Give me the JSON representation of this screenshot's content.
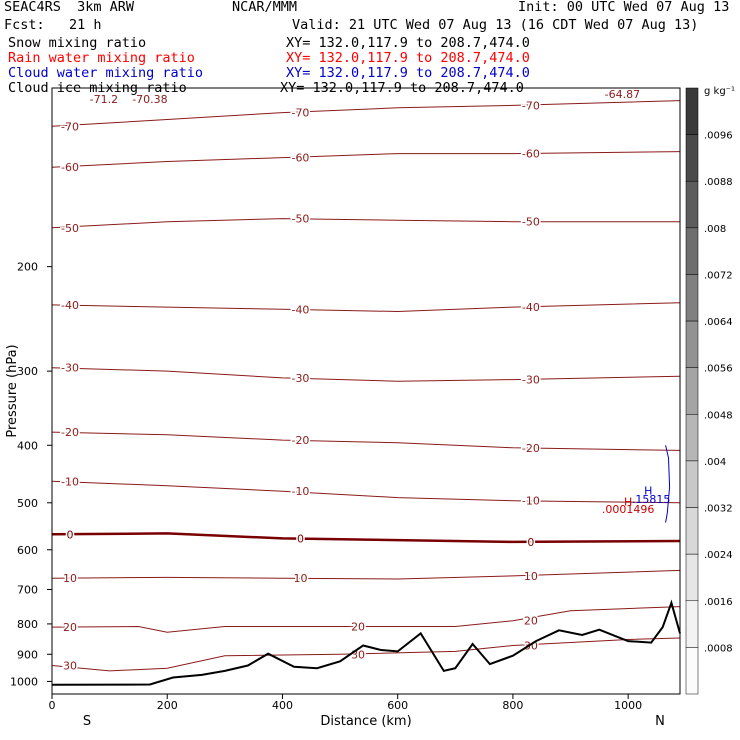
{
  "header": {
    "model": "SEAC4RS  3km ARW",
    "org": "NCAR/MMM",
    "init": "Init: 00 UTC Wed 07 Aug 13",
    "fcst": "Fcst:   21 h",
    "valid": "Valid: 21 UTC Wed 07 Aug 13 (16 CDT Wed 07 Aug 13)",
    "fields": [
      {
        "label": "Snow mixing ratio",
        "xy": "XY= 132.0,117.9 to 208.7,474.0",
        "color": "#000000"
      },
      {
        "label": "Rain water mixing ratio",
        "xy": "XY= 132.0,117.9 to 208.7,474.0",
        "color": "#ff0000"
      },
      {
        "label": "Cloud water mixing ratio",
        "xy": "XY= 132.0,117.9 to 208.7,474.0",
        "color": "#0000cc"
      },
      {
        "label": "Cloud ice mixing ratio",
        "xy": "XY= 132.0,117.9 to 208.7,474.0",
        "color": "#000000"
      }
    ]
  },
  "colorbar": {
    "unit": "g kg⁻¹",
    "ticks": [
      ".0096",
      ".0088",
      ".008",
      ".0072",
      ".0064",
      ".0056",
      ".0048",
      ".004",
      ".0032",
      ".0024",
      ".0016",
      ".0008"
    ],
    "colors": [
      "#3a3a3a",
      "#4a4a4a",
      "#5c5c5c",
      "#6e6e6e",
      "#808080",
      "#929292",
      "#a4a4a4",
      "#b6b6b6",
      "#c8c8c8",
      "#d8d8d8",
      "#e6e6e6",
      "#f2f2f2",
      "#fbfbfb"
    ]
  },
  "chart_data": {
    "type": "contour-cross-section",
    "xlabel": "Distance (km)",
    "ylabel": "Pressure (hPa)",
    "xlim": [
      0,
      1090
    ],
    "ylim": [
      1050,
      100
    ],
    "y_log": true,
    "xticks": [
      "0",
      "200",
      "400",
      "600",
      "800",
      "1000"
    ],
    "yticks": [
      "200",
      "300",
      "400",
      "500",
      "600",
      "700",
      "800",
      "900",
      "1000"
    ],
    "x_end_labels": {
      "left": "S",
      "right": "N"
    },
    "temperature_contours": [
      {
        "value": -70,
        "color": "#8b1a1a",
        "pts": [
          [
            0,
            116
          ],
          [
            200,
            113
          ],
          [
            400,
            110
          ],
          [
            600,
            108
          ],
          [
            800,
            107
          ],
          [
            1090,
            105
          ]
        ]
      },
      {
        "value": -60,
        "color": "#8b1a1a",
        "pts": [
          [
            0,
            136
          ],
          [
            200,
            133
          ],
          [
            400,
            131
          ],
          [
            600,
            129
          ],
          [
            800,
            129
          ],
          [
            1090,
            128
          ]
        ]
      },
      {
        "value": -50,
        "color": "#8b1a1a",
        "pts": [
          [
            0,
            172
          ],
          [
            200,
            168
          ],
          [
            400,
            166
          ],
          [
            600,
            167
          ],
          [
            800,
            168
          ],
          [
            1090,
            168
          ]
        ]
      },
      {
        "value": -40,
        "color": "#8b1a1a",
        "pts": [
          [
            0,
            232
          ],
          [
            200,
            234
          ],
          [
            400,
            236
          ],
          [
            600,
            238
          ],
          [
            800,
            234
          ],
          [
            1090,
            230
          ]
        ]
      },
      {
        "value": -30,
        "color": "#8b1a1a",
        "pts": [
          [
            0,
            296
          ],
          [
            200,
            300
          ],
          [
            400,
            308
          ],
          [
            600,
            312
          ],
          [
            800,
            310
          ],
          [
            1090,
            306
          ]
        ]
      },
      {
        "value": -20,
        "color": "#8b1a1a",
        "pts": [
          [
            0,
            380
          ],
          [
            200,
            384
          ],
          [
            400,
            392
          ],
          [
            600,
            396
          ],
          [
            800,
            404
          ],
          [
            1090,
            408
          ]
        ]
      },
      {
        "value": -10,
        "color": "#8b1a1a",
        "pts": [
          [
            0,
            460
          ],
          [
            200,
            468
          ],
          [
            400,
            478
          ],
          [
            600,
            490
          ],
          [
            800,
            496
          ],
          [
            1090,
            500
          ]
        ]
      },
      {
        "value": 0,
        "color": "#7a0000",
        "bold": true,
        "pts": [
          [
            0,
            565
          ],
          [
            200,
            563
          ],
          [
            400,
            574
          ],
          [
            600,
            578
          ],
          [
            800,
            582
          ],
          [
            1090,
            580
          ]
        ]
      },
      {
        "value": 10,
        "color": "#8b1a1a",
        "pts": [
          [
            0,
            670
          ],
          [
            200,
            668
          ],
          [
            400,
            670
          ],
          [
            600,
            672
          ],
          [
            800,
            664
          ],
          [
            1090,
            650
          ]
        ]
      },
      {
        "value": 20,
        "color": "#8b1a1a",
        "pts": [
          [
            0,
            810
          ],
          [
            150,
            808
          ],
          [
            200,
            826
          ],
          [
            300,
            808
          ],
          [
            500,
            808
          ],
          [
            700,
            808
          ],
          [
            800,
            790
          ],
          [
            900,
            760
          ],
          [
            1090,
            748
          ]
        ]
      },
      {
        "value": 30,
        "color": "#8b1a1a",
        "pts": [
          [
            0,
            940
          ],
          [
            100,
            960
          ],
          [
            200,
            950
          ],
          [
            300,
            905
          ],
          [
            500,
            900
          ],
          [
            700,
            890
          ],
          [
            800,
            870
          ],
          [
            1000,
            850
          ],
          [
            1090,
            845
          ]
        ]
      }
    ],
    "terrain_surface_hpa": [
      [
        0,
        1013
      ],
      [
        170,
        1012
      ],
      [
        210,
        985
      ],
      [
        260,
        975
      ],
      [
        300,
        960
      ],
      [
        340,
        940
      ],
      [
        375,
        898
      ],
      [
        420,
        945
      ],
      [
        460,
        950
      ],
      [
        500,
        925
      ],
      [
        540,
        870
      ],
      [
        570,
        885
      ],
      [
        600,
        890
      ],
      [
        640,
        830
      ],
      [
        680,
        960
      ],
      [
        700,
        950
      ],
      [
        730,
        865
      ],
      [
        760,
        935
      ],
      [
        800,
        905
      ],
      [
        840,
        855
      ],
      [
        880,
        820
      ],
      [
        920,
        835
      ],
      [
        950,
        818
      ],
      [
        1000,
        855
      ],
      [
        1040,
        860
      ],
      [
        1060,
        810
      ],
      [
        1075,
        737
      ],
      [
        1090,
        830
      ]
    ],
    "annotations": [
      {
        "text": "H",
        "color": "#cc0000",
        "x": 1000,
        "p": 505
      },
      {
        "text": ".0001496",
        "color": "#cc0000",
        "x": 1000,
        "p": 520
      },
      {
        "text": "H",
        "color": "#0000cc",
        "x": 1035,
        "p": 484
      },
      {
        "text": ".15815",
        "color": "#0000cc",
        "x": 1040,
        "p": 500
      },
      {
        "text": "-71.2",
        "color": "#8b1a1a",
        "x": 90,
        "p": 106
      },
      {
        "text": "-70.38",
        "color": "#8b1a1a",
        "x": 170,
        "p": 106
      },
      {
        "text": "-64.87",
        "color": "#8b1a1a",
        "x": 990,
        "p": 104
      }
    ],
    "cloud_water_contour": {
      "color": "#0000cc",
      "pts": [
        [
          1065,
          400
        ],
        [
          1070,
          420
        ],
        [
          1072,
          470
        ],
        [
          1068,
          520
        ],
        [
          1065,
          540
        ]
      ]
    }
  }
}
